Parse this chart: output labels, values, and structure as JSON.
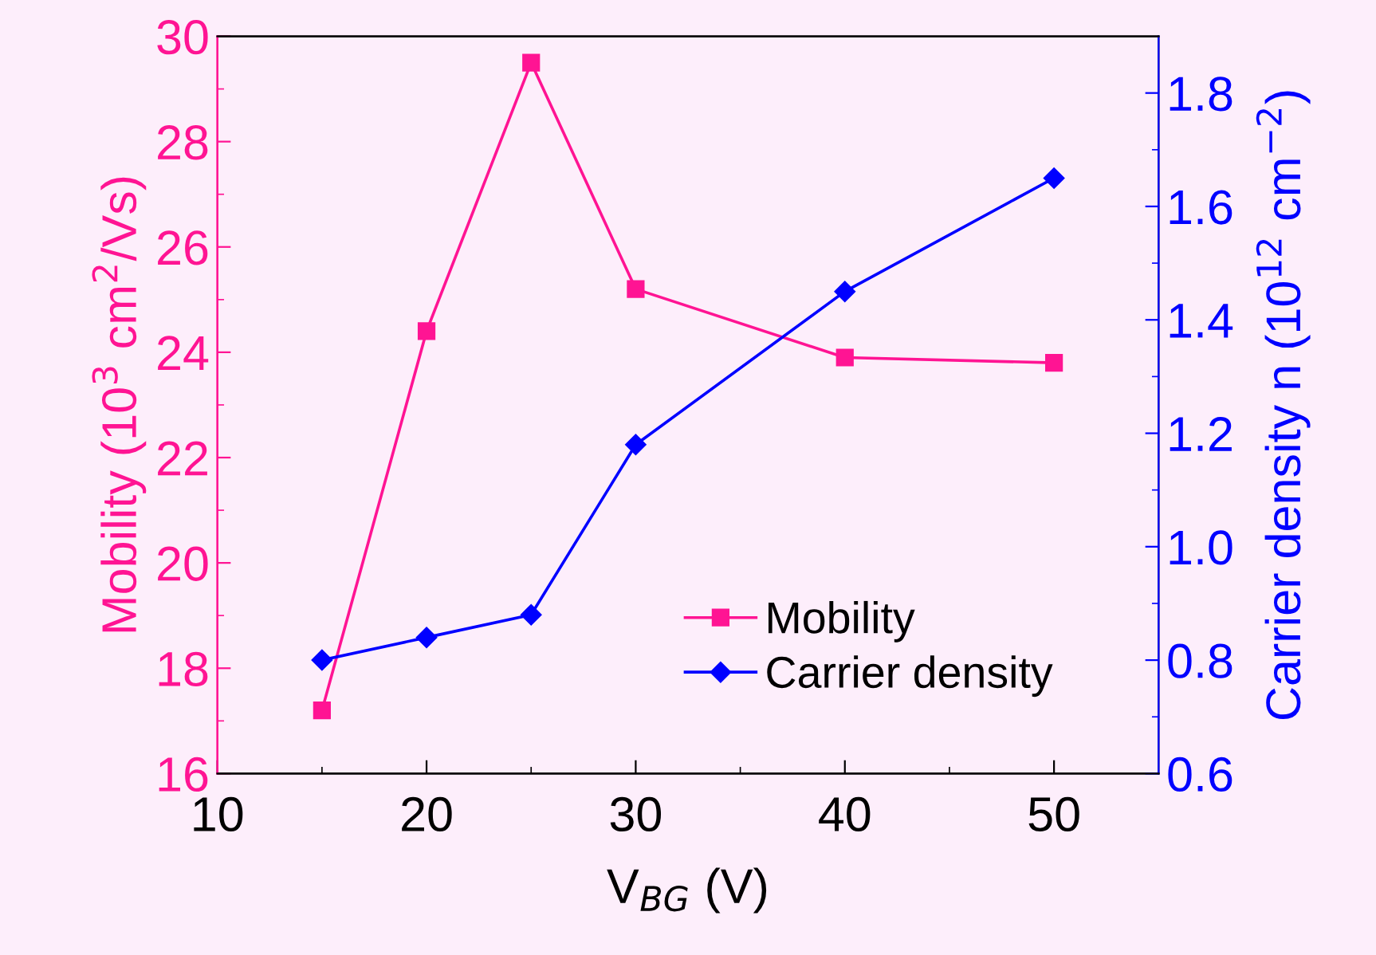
{
  "chart_data": {
    "type": "line",
    "xlabel": "V$_{BG}$ (V)",
    "ylabel": "Mobility (10$^{3}$ cm$^{2}$/Vs)",
    "y2label": "Carrier density n (10$^{12}$ cm$^{−2}$)",
    "x": [
      15,
      20,
      25,
      30,
      40,
      50
    ],
    "series": [
      {
        "name": "Mobility",
        "color": "#ff1493",
        "marker": "square",
        "values": [
          17.2,
          24.4,
          29.5,
          25.2,
          23.9,
          23.8
        ]
      },
      {
        "name": "Carrier density",
        "color": "#0000ff",
        "marker": "diamond",
        "axis": "y2",
        "values": [
          0.8,
          0.84,
          0.88,
          1.18,
          1.45,
          1.65
        ]
      }
    ],
    "xlim": [
      10,
      55
    ],
    "xticks": [
      10,
      20,
      30,
      40,
      50
    ],
    "ylim": [
      16,
      30
    ],
    "yticks": [
      16,
      18,
      20,
      22,
      24,
      26,
      28,
      30
    ],
    "y2lim": [
      0.6,
      1.9
    ],
    "y2ticks": [
      {
        "value": 0.6,
        "label": "0.6"
      },
      {
        "value": 0.8,
        "label": "0.8"
      },
      {
        "value": 1.0,
        "label": "1.0"
      },
      {
        "value": 1.2,
        "label": "1.2"
      },
      {
        "value": 1.4,
        "label": "1.4"
      },
      {
        "value": 1.6,
        "label": "1.6"
      },
      {
        "value": 1.8,
        "label": "1.8"
      }
    ],
    "grid": false,
    "legend": "bottom right",
    "line_style": "solid"
  }
}
